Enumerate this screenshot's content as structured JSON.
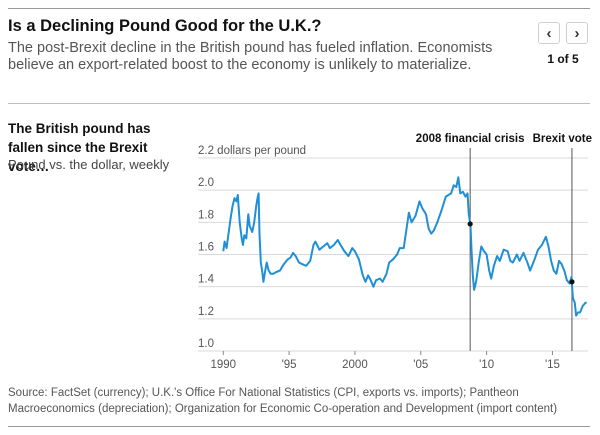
{
  "header": {
    "headline": "Is a Declining Pound Good for the U.K.?",
    "dek": "The post-Brexit decline in the British pound has fueled inflation. Economists believe an export-related boost to the economy is unlikely to materialize.",
    "pager": {
      "prev_icon": "chevron-left-icon",
      "next_icon": "chevron-right-icon",
      "prev_glyph": "‹",
      "next_glyph": "›",
      "count": "1 of 5"
    }
  },
  "chart_text": {
    "title": "The British pound has fallen since the Brexit vote…",
    "subtitle": "Pound vs. the dollar, weekly"
  },
  "source": "Source: FactSet (currency); U.K.'s Office For National Statistics (CPI, exports vs. imports); Pantheon Macroeconomics (depreciation); Organization for Economic Co-operation and Development (import content)",
  "colors": {
    "line": "#1f8fd6",
    "grid": "#d9d9d9",
    "annotation": "#555555"
  },
  "chart_data": {
    "type": "line",
    "title": "The British pound has fallen since the Brexit vote…",
    "subtitle": "Pound vs. the dollar, weekly",
    "ylabel": "dollars per pound",
    "ylim": [
      1.0,
      2.2
    ],
    "xlim": [
      1989.6,
      2017.7
    ],
    "yticks": [
      1.0,
      1.2,
      1.4,
      1.6,
      1.8,
      2.0,
      2.2
    ],
    "ytick_labels": [
      "1.0",
      "1.2",
      "1.4",
      "1.6",
      "1.8",
      "2.0",
      "2.2 dollars per pound"
    ],
    "xticks": [
      1990,
      1995,
      2000,
      2005,
      2010,
      2015
    ],
    "xtick_labels": [
      "1990",
      "'95",
      "2000",
      "'05",
      "'10",
      "'15"
    ],
    "grid": true,
    "series": [
      {
        "values": [
          [
            1990.0,
            1.62
          ],
          [
            1990.1,
            1.68
          ],
          [
            1990.25,
            1.64
          ],
          [
            1990.4,
            1.73
          ],
          [
            1990.55,
            1.82
          ],
          [
            1990.7,
            1.9
          ],
          [
            1990.85,
            1.95
          ],
          [
            1991.0,
            1.93
          ],
          [
            1991.1,
            1.97
          ],
          [
            1991.25,
            1.8
          ],
          [
            1991.4,
            1.7
          ],
          [
            1991.5,
            1.66
          ],
          [
            1991.6,
            1.72
          ],
          [
            1991.75,
            1.7
          ],
          [
            1991.9,
            1.85
          ],
          [
            1992.0,
            1.78
          ],
          [
            1992.2,
            1.74
          ],
          [
            1992.35,
            1.8
          ],
          [
            1992.5,
            1.9
          ],
          [
            1992.6,
            1.95
          ],
          [
            1992.68,
            1.98
          ],
          [
            1992.75,
            1.73
          ],
          [
            1992.85,
            1.55
          ],
          [
            1992.95,
            1.5
          ],
          [
            1993.05,
            1.43
          ],
          [
            1993.15,
            1.48
          ],
          [
            1993.3,
            1.55
          ],
          [
            1993.45,
            1.5
          ],
          [
            1993.6,
            1.48
          ],
          [
            1993.8,
            1.48
          ],
          [
            1994.0,
            1.49
          ],
          [
            1994.3,
            1.5
          ],
          [
            1994.6,
            1.54
          ],
          [
            1994.9,
            1.57
          ],
          [
            1995.1,
            1.58
          ],
          [
            1995.3,
            1.61
          ],
          [
            1995.5,
            1.59
          ],
          [
            1995.75,
            1.55
          ],
          [
            1996.0,
            1.54
          ],
          [
            1996.3,
            1.53
          ],
          [
            1996.6,
            1.56
          ],
          [
            1996.85,
            1.66
          ],
          [
            1997.0,
            1.68
          ],
          [
            1997.3,
            1.63
          ],
          [
            1997.6,
            1.65
          ],
          [
            1997.9,
            1.67
          ],
          [
            1998.1,
            1.64
          ],
          [
            1998.4,
            1.66
          ],
          [
            1998.7,
            1.69
          ],
          [
            1998.9,
            1.66
          ],
          [
            1999.2,
            1.62
          ],
          [
            1999.5,
            1.59
          ],
          [
            1999.8,
            1.64
          ],
          [
            2000.0,
            1.62
          ],
          [
            2000.3,
            1.57
          ],
          [
            2000.6,
            1.47
          ],
          [
            2000.8,
            1.43
          ],
          [
            2001.0,
            1.47
          ],
          [
            2001.2,
            1.44
          ],
          [
            2001.4,
            1.4
          ],
          [
            2001.6,
            1.44
          ],
          [
            2001.9,
            1.45
          ],
          [
            2002.1,
            1.43
          ],
          [
            2002.4,
            1.48
          ],
          [
            2002.6,
            1.55
          ],
          [
            2002.9,
            1.57
          ],
          [
            2003.2,
            1.6
          ],
          [
            2003.4,
            1.64
          ],
          [
            2003.7,
            1.64
          ],
          [
            2003.9,
            1.75
          ],
          [
            2004.1,
            1.86
          ],
          [
            2004.3,
            1.8
          ],
          [
            2004.6,
            1.84
          ],
          [
            2004.9,
            1.93
          ],
          [
            2005.1,
            1.89
          ],
          [
            2005.4,
            1.85
          ],
          [
            2005.6,
            1.76
          ],
          [
            2005.8,
            1.73
          ],
          [
            2006.0,
            1.75
          ],
          [
            2006.3,
            1.81
          ],
          [
            2006.6,
            1.88
          ],
          [
            2006.9,
            1.96
          ],
          [
            2007.1,
            1.97
          ],
          [
            2007.3,
            1.98
          ],
          [
            2007.5,
            2.03
          ],
          [
            2007.7,
            2.02
          ],
          [
            2007.85,
            2.08
          ],
          [
            2008.0,
            1.98
          ],
          [
            2008.2,
            1.99
          ],
          [
            2008.4,
            1.96
          ],
          [
            2008.55,
            1.98
          ],
          [
            2008.65,
            1.85
          ],
          [
            2008.78,
            1.78
          ],
          [
            2008.85,
            1.63
          ],
          [
            2008.95,
            1.47
          ],
          [
            2009.05,
            1.38
          ],
          [
            2009.2,
            1.43
          ],
          [
            2009.4,
            1.55
          ],
          [
            2009.6,
            1.65
          ],
          [
            2009.8,
            1.62
          ],
          [
            2010.0,
            1.6
          ],
          [
            2010.2,
            1.5
          ],
          [
            2010.35,
            1.45
          ],
          [
            2010.55,
            1.53
          ],
          [
            2010.8,
            1.59
          ],
          [
            2011.0,
            1.56
          ],
          [
            2011.3,
            1.63
          ],
          [
            2011.6,
            1.62
          ],
          [
            2011.8,
            1.56
          ],
          [
            2012.0,
            1.55
          ],
          [
            2012.3,
            1.6
          ],
          [
            2012.5,
            1.56
          ],
          [
            2012.8,
            1.61
          ],
          [
            2013.1,
            1.55
          ],
          [
            2013.3,
            1.5
          ],
          [
            2013.6,
            1.56
          ],
          [
            2013.9,
            1.63
          ],
          [
            2014.2,
            1.66
          ],
          [
            2014.5,
            1.71
          ],
          [
            2014.7,
            1.65
          ],
          [
            2014.9,
            1.56
          ],
          [
            2015.1,
            1.5
          ],
          [
            2015.3,
            1.48
          ],
          [
            2015.5,
            1.56
          ],
          [
            2015.7,
            1.54
          ],
          [
            2015.9,
            1.5
          ],
          [
            2016.1,
            1.44
          ],
          [
            2016.3,
            1.42
          ],
          [
            2016.45,
            1.46
          ],
          [
            2016.48,
            1.42
          ],
          [
            2016.55,
            1.33
          ],
          [
            2016.7,
            1.3
          ],
          [
            2016.8,
            1.22
          ],
          [
            2016.95,
            1.24
          ],
          [
            2017.1,
            1.24
          ],
          [
            2017.3,
            1.28
          ],
          [
            2017.5,
            1.3
          ],
          [
            2017.6,
            1.3
          ]
        ]
      }
    ],
    "annotations": [
      {
        "label": "2008 financial crisis",
        "x": 2008.75,
        "y": 1.79
      },
      {
        "label": "Brexit vote",
        "x": 2016.48,
        "y": 1.43
      }
    ]
  }
}
